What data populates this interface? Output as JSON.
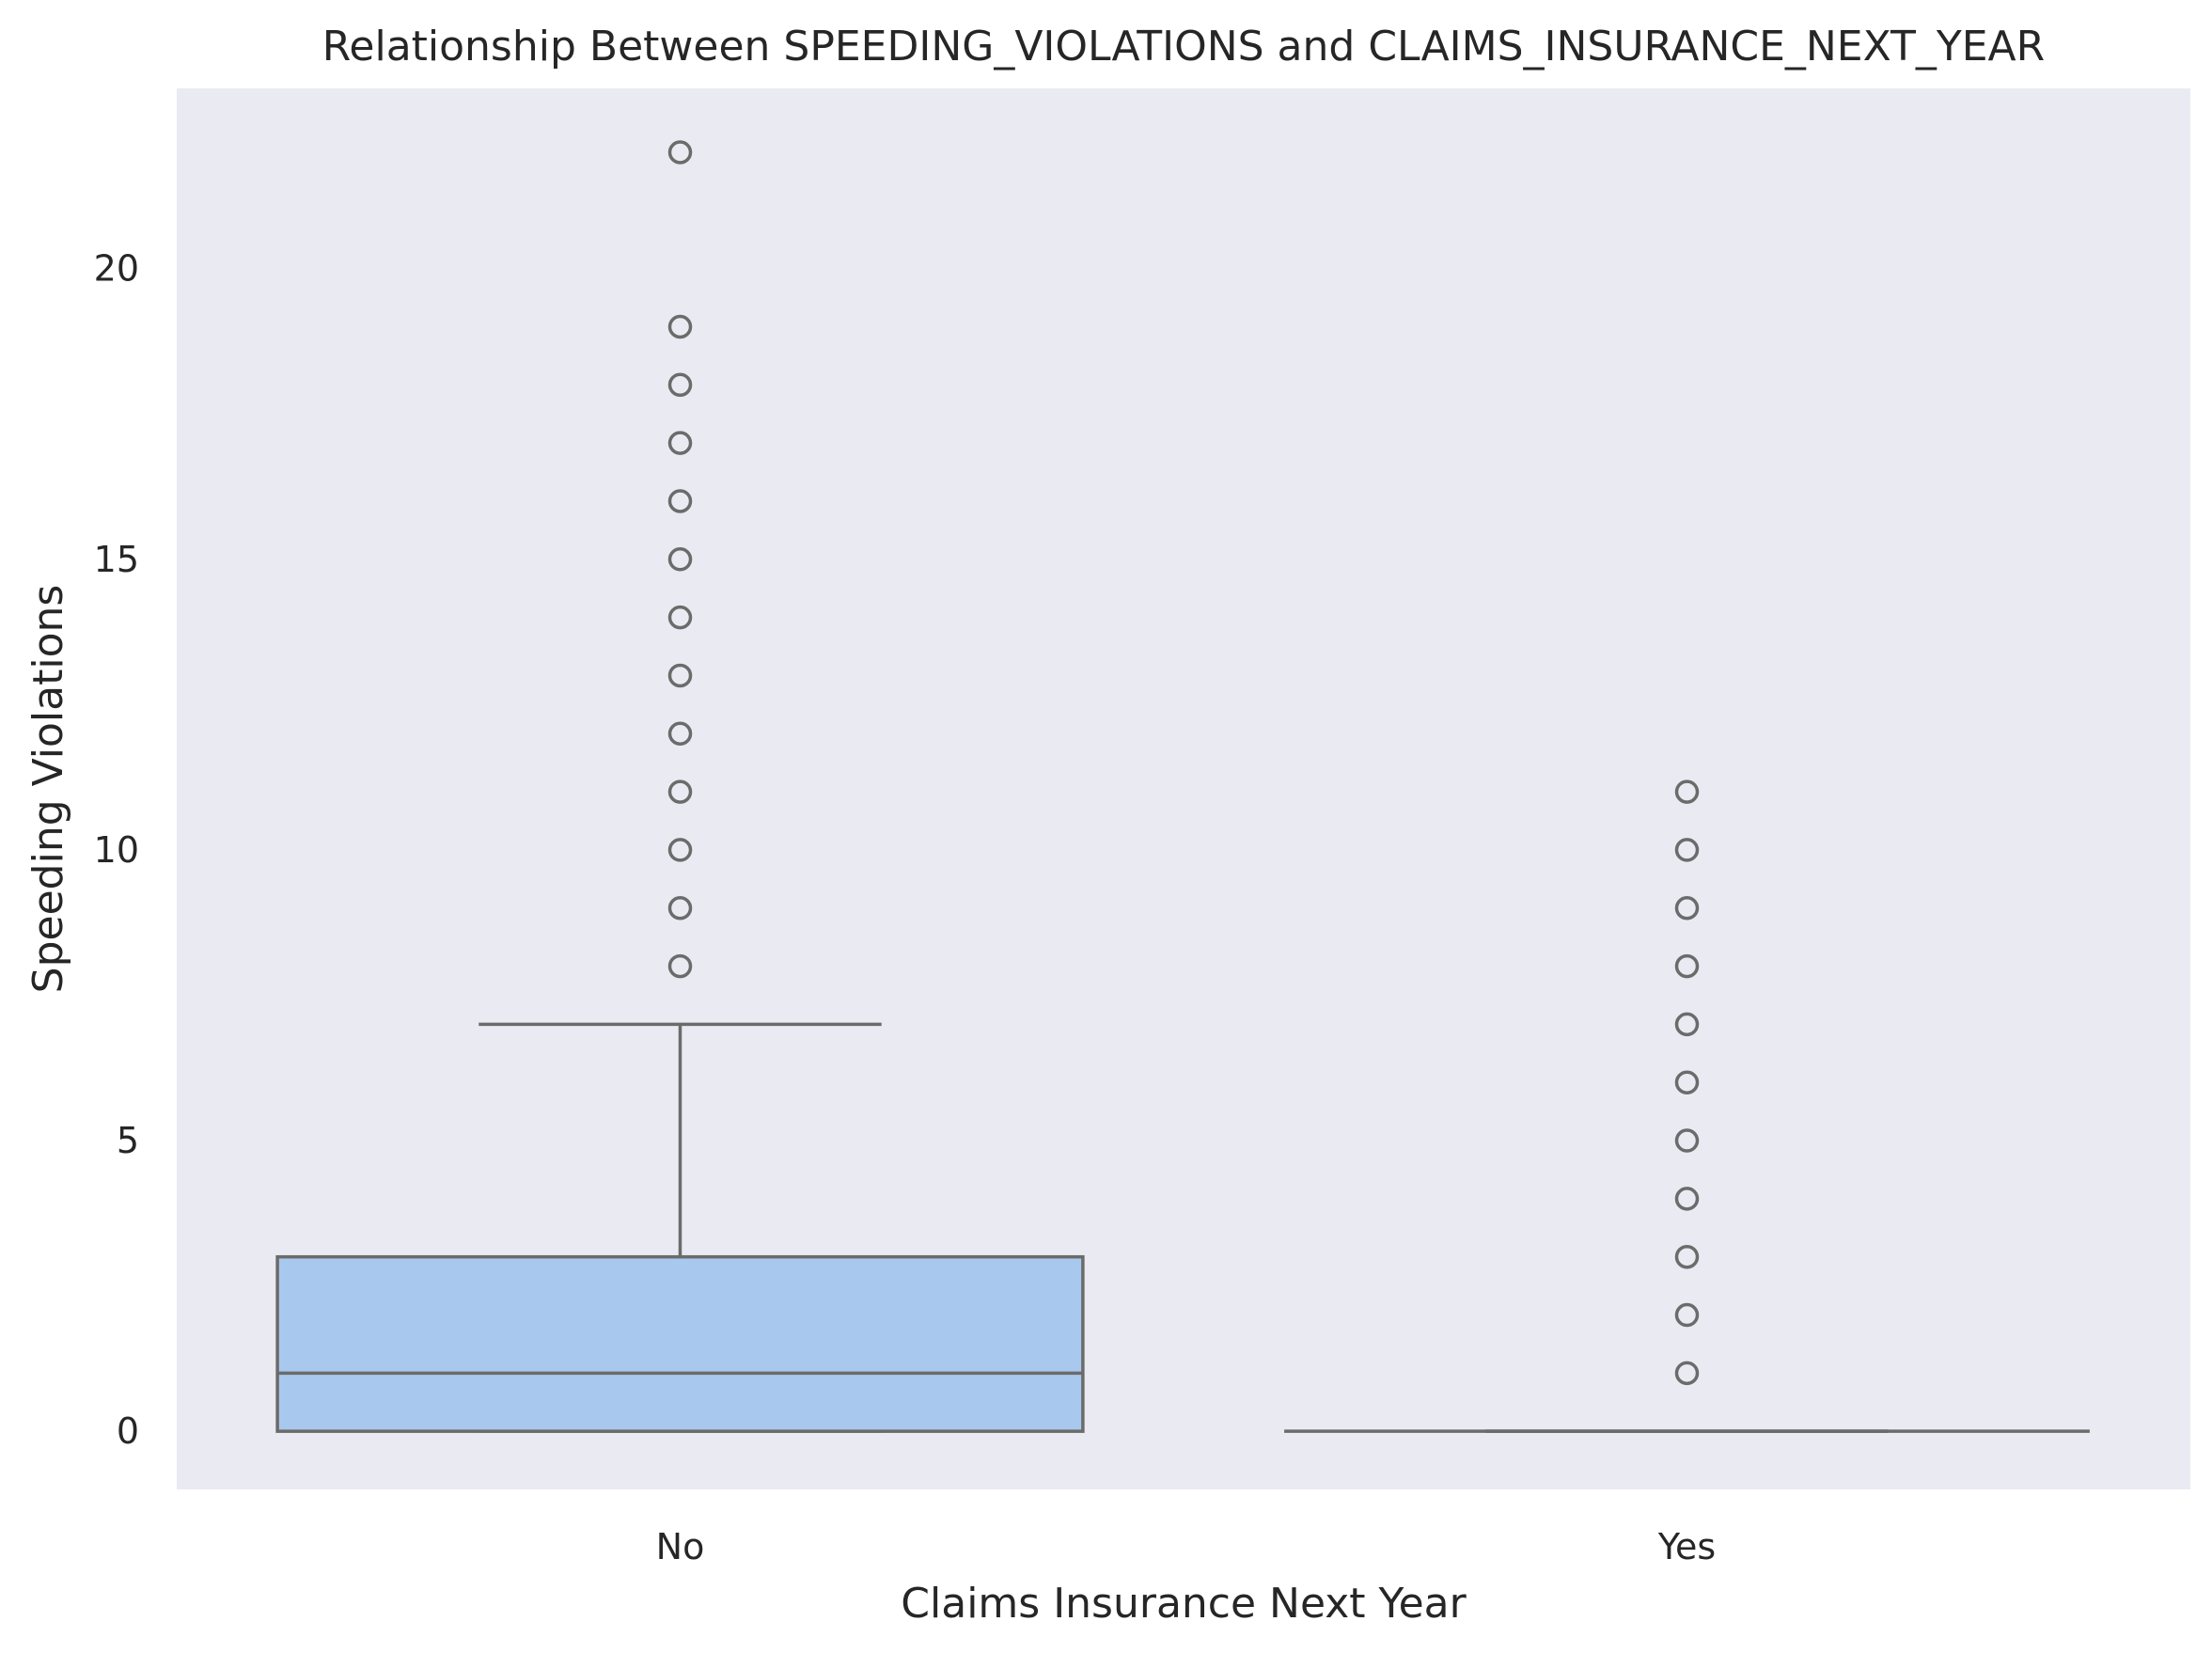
{
  "chart_data": {
    "type": "box",
    "title": "Relationship Between SPEEDING_VIOLATIONS and CLAIMS_INSURANCE_NEXT_YEAR",
    "xlabel": "Claims Insurance Next Year",
    "ylabel": "Speeding Violations",
    "categories": [
      "No",
      "Yes"
    ],
    "ylim": [
      -1,
      23.1
    ],
    "yticks": [
      0,
      5,
      10,
      15,
      20
    ],
    "ytick_labels": [
      "0",
      "5",
      "10",
      "15",
      "20"
    ],
    "grid": false,
    "colors": {
      "plot_background": "#eaeaf2",
      "box_fill": "#a9c8ed",
      "line": "#6b6b6b",
      "text": "#262626"
    },
    "boxes": [
      {
        "category": "No",
        "q1": 0,
        "median": 1,
        "q3": 3,
        "whisker_low": 0,
        "whisker_high": 7,
        "outliers": [
          8,
          9,
          10,
          11,
          12,
          13,
          14,
          15,
          16,
          17,
          18,
          19,
          22
        ]
      },
      {
        "category": "Yes",
        "q1": 0,
        "median": 0,
        "q3": 0,
        "whisker_low": 0,
        "whisker_high": 0,
        "outliers": [
          1,
          2,
          3,
          4,
          5,
          6,
          7,
          8,
          9,
          10,
          11
        ]
      }
    ]
  }
}
